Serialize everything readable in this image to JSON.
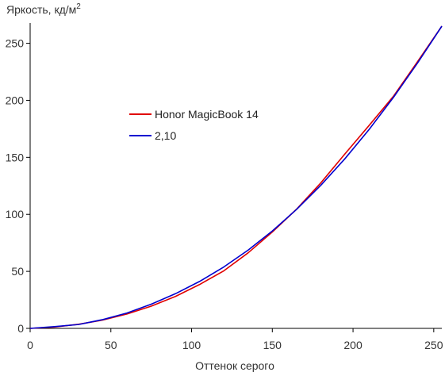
{
  "chart_data": {
    "type": "line",
    "title": "",
    "ylabel": "Яркость, кд/м",
    "ylabel_superscript": "2",
    "xlabel": "Оттенок серого",
    "xlim": [
      0,
      255
    ],
    "ylim": [
      0,
      265
    ],
    "xticks": [
      0,
      50,
      100,
      150,
      200,
      250
    ],
    "yticks": [
      0,
      50,
      100,
      150,
      200,
      250
    ],
    "grid": false,
    "legend_position": "center-left",
    "series": [
      {
        "name": "Honor MagicBook 14",
        "color": "#e00000",
        "x": [
          0,
          15,
          30,
          45,
          60,
          75,
          90,
          105,
          120,
          135,
          150,
          165,
          180,
          195,
          210,
          225,
          240,
          255
        ],
        "y": [
          0,
          1.2,
          3.6,
          7.3,
          12.6,
          19.5,
          28,
          38.5,
          50.5,
          66.2,
          84.5,
          104.5,
          127.5,
          153,
          178,
          203.5,
          234,
          265
        ]
      },
      {
        "name": "2,10",
        "color": "#0000d0",
        "x": [
          0,
          15,
          30,
          45,
          60,
          75,
          90,
          105,
          120,
          135,
          150,
          165,
          180,
          195,
          210,
          225,
          240,
          255
        ],
        "y": [
          0,
          1.5,
          3.4,
          7.7,
          13.5,
          21.2,
          30.4,
          41.2,
          53.9,
          68.6,
          85.4,
          104.3,
          125.4,
          148.8,
          174.5,
          202.5,
          232.8,
          265
        ]
      }
    ]
  }
}
